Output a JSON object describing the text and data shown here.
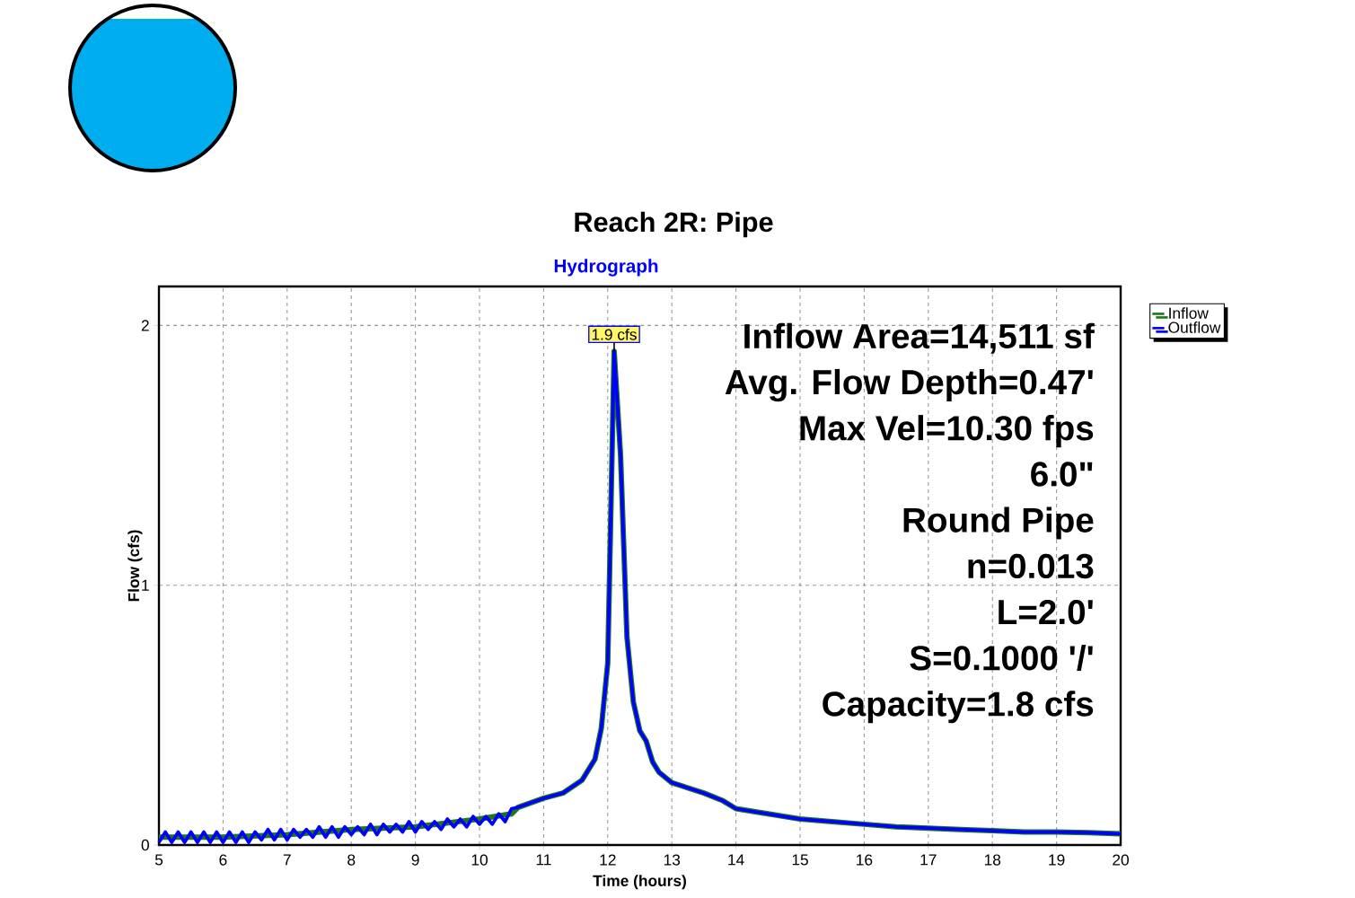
{
  "chart_data": {
    "type": "line",
    "title": "Reach 2R: Pipe",
    "subtitle": "Hydrograph",
    "xlabel": "Time (hours)",
    "ylabel": "Flow (cfs)",
    "xlim": [
      5,
      20
    ],
    "ylim": [
      0,
      2.15
    ],
    "xticks": [
      5,
      6,
      7,
      8,
      9,
      10,
      11,
      12,
      13,
      14,
      15,
      16,
      17,
      18,
      19,
      20
    ],
    "yticks": [
      0,
      1,
      2
    ],
    "grid": true,
    "legend": "right",
    "annotations": [
      {
        "text": "1.9 cfs",
        "x": 12.1,
        "y": 1.9
      },
      "Inflow Area=14,511 sf",
      "Avg. Flow Depth=0.47'",
      "Max Vel=10.30 fps",
      "6.0\"",
      "Round Pipe",
      "n=0.013",
      "L=2.0'",
      "S=0.1000 '/'",
      "Capacity=1.8 cfs"
    ],
    "series": [
      {
        "name": "Inflow",
        "color": "#1a7a1a",
        "x": [
          5,
          6,
          7,
          8,
          9,
          10,
          10.5,
          10.6,
          11,
          11.3,
          11.6,
          11.8,
          11.9,
          12.0,
          12.05,
          12.1,
          12.2,
          12.3,
          12.4,
          12.5,
          12.6,
          12.7,
          12.8,
          13.0,
          13.5,
          13.8,
          14.0,
          14.5,
          15.0,
          15.5,
          16,
          16.5,
          17,
          17.5,
          18,
          18.5,
          19,
          19.5,
          20
        ],
        "values": [
          0.03,
          0.03,
          0.04,
          0.06,
          0.07,
          0.1,
          0.12,
          0.145,
          0.18,
          0.2,
          0.25,
          0.33,
          0.45,
          0.7,
          1.3,
          1.9,
          1.5,
          0.8,
          0.55,
          0.44,
          0.4,
          0.32,
          0.28,
          0.24,
          0.2,
          0.17,
          0.14,
          0.12,
          0.1,
          0.09,
          0.08,
          0.07,
          0.065,
          0.06,
          0.055,
          0.05,
          0.05,
          0.048,
          0.043
        ]
      },
      {
        "name": "Outflow",
        "color": "#0000ff",
        "x": [
          5.0,
          5.1,
          5.2,
          5.3,
          5.4,
          5.5,
          5.6,
          5.7,
          5.8,
          5.9,
          6.0,
          6.1,
          6.2,
          6.3,
          6.4,
          6.5,
          6.6,
          6.7,
          6.8,
          6.9,
          7.0,
          7.1,
          7.2,
          7.3,
          7.4,
          7.5,
          7.6,
          7.7,
          7.8,
          7.9,
          8.0,
          8.1,
          8.2,
          8.3,
          8.4,
          8.5,
          8.6,
          8.7,
          8.8,
          8.9,
          9.0,
          9.1,
          9.2,
          9.3,
          9.4,
          9.5,
          9.6,
          9.7,
          9.8,
          9.9,
          10.0,
          10.1,
          10.2,
          10.3,
          10.4,
          10.5,
          10.6,
          11,
          11.3,
          11.6,
          11.8,
          11.9,
          12.0,
          12.05,
          12.1,
          12.2,
          12.3,
          12.4,
          12.5,
          12.6,
          12.7,
          12.8,
          13.0,
          13.5,
          13.8,
          14.0,
          14.5,
          15.0,
          15.5,
          16,
          16.5,
          17,
          17.5,
          18,
          18.5,
          19,
          19.5,
          20
        ],
        "values": [
          0.01,
          0.05,
          0.01,
          0.05,
          0.01,
          0.05,
          0.01,
          0.05,
          0.01,
          0.05,
          0.01,
          0.05,
          0.01,
          0.05,
          0.01,
          0.05,
          0.02,
          0.06,
          0.02,
          0.06,
          0.02,
          0.06,
          0.03,
          0.06,
          0.03,
          0.07,
          0.03,
          0.07,
          0.03,
          0.07,
          0.04,
          0.07,
          0.04,
          0.08,
          0.04,
          0.08,
          0.05,
          0.08,
          0.05,
          0.09,
          0.05,
          0.09,
          0.06,
          0.09,
          0.06,
          0.1,
          0.07,
          0.1,
          0.07,
          0.11,
          0.08,
          0.11,
          0.08,
          0.12,
          0.09,
          0.14,
          0.145,
          0.18,
          0.2,
          0.25,
          0.33,
          0.45,
          0.7,
          1.3,
          1.9,
          1.5,
          0.8,
          0.55,
          0.44,
          0.4,
          0.32,
          0.28,
          0.24,
          0.2,
          0.17,
          0.14,
          0.12,
          0.1,
          0.09,
          0.08,
          0.07,
          0.065,
          0.06,
          0.055,
          0.05,
          0.05,
          0.048,
          0.043
        ]
      }
    ]
  }
}
